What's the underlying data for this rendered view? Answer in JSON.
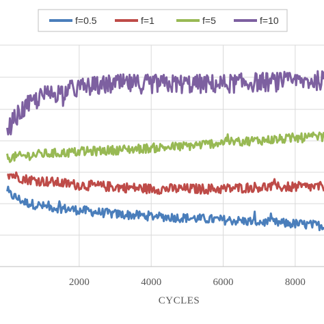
{
  "chart_data": {
    "type": "line",
    "title": "",
    "xlabel": "CYCLES",
    "ylabel": "",
    "xlim": [
      -200,
      8800
    ],
    "x_ticks": [
      2000,
      4000,
      6000,
      8000
    ],
    "x_tick_labels": [
      "2000",
      "4000",
      "6000",
      "8000"
    ],
    "grid": true,
    "legend_position": "top",
    "series": [
      {
        "name": "f=0.5",
        "color": "#4a7ebb",
        "x": [
          0,
          500,
          1000,
          2000,
          3000,
          4000,
          5000,
          6000,
          7000,
          8000,
          8800
        ],
        "y": [
          0.24,
          0.215,
          0.205,
          0.195,
          0.185,
          0.18,
          0.175,
          0.17,
          0.165,
          0.16,
          0.155
        ],
        "noise": 0.012
      },
      {
        "name": "f=1",
        "color": "#be4b48",
        "x": [
          0,
          500,
          1000,
          2000,
          3000,
          4000,
          5000,
          6000,
          7000,
          8000,
          8800
        ],
        "y": [
          0.29,
          0.275,
          0.27,
          0.26,
          0.255,
          0.25,
          0.25,
          0.25,
          0.255,
          0.255,
          0.255
        ],
        "noise": 0.013
      },
      {
        "name": "f=5",
        "color": "#98b954",
        "x": [
          0,
          500,
          1000,
          2000,
          3000,
          4000,
          5000,
          6000,
          7000,
          8000,
          8800
        ],
        "y": [
          0.33,
          0.335,
          0.34,
          0.345,
          0.35,
          0.355,
          0.36,
          0.37,
          0.375,
          0.38,
          0.385
        ],
        "noise": 0.012
      },
      {
        "name": "f=10",
        "color": "#7d60a0",
        "x": [
          0,
          200,
          500,
          1000,
          1500,
          2000,
          3000,
          4000,
          5000,
          6000,
          7000,
          8000,
          8800
        ],
        "y": [
          0.4,
          0.43,
          0.46,
          0.49,
          0.5,
          0.51,
          0.52,
          0.52,
          0.52,
          0.52,
          0.525,
          0.525,
          0.53
        ],
        "noise": 0.025
      }
    ]
  }
}
